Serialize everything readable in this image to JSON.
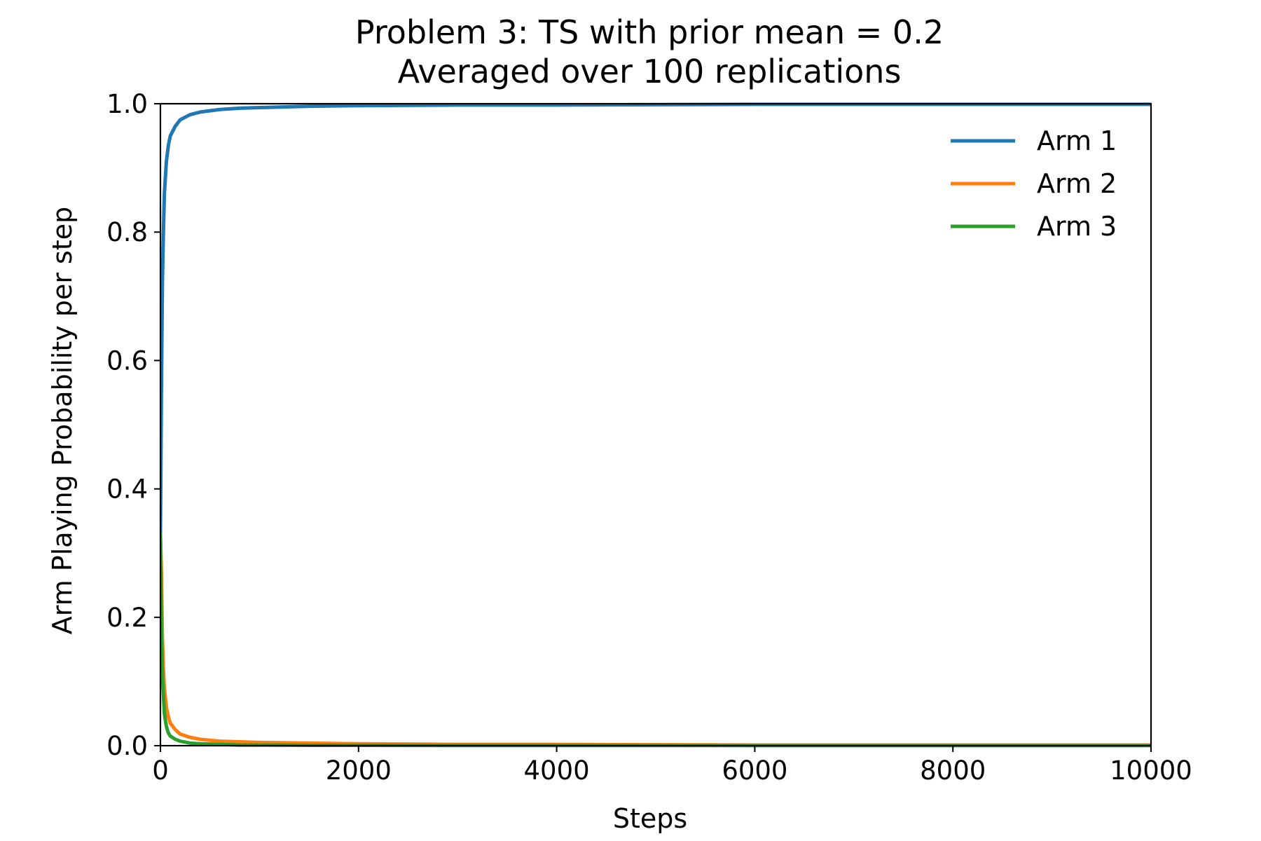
{
  "chart_data": {
    "type": "line",
    "title": "Problem 3: TS with prior mean = 0.2",
    "subtitle": "Averaged over 100 replications",
    "xlabel": "Steps",
    "ylabel": "Arm Playing Probability per step",
    "xlim": [
      0,
      10000
    ],
    "ylim": [
      0.0,
      1.0
    ],
    "x_ticks": [
      "0",
      "2000",
      "4000",
      "6000",
      "8000",
      "10000"
    ],
    "y_ticks": [
      "0.0",
      "0.2",
      "0.4",
      "0.6",
      "0.8",
      "1.0"
    ],
    "grid": false,
    "legend_position": "top-right",
    "series": [
      {
        "name": "Arm 1",
        "color": "#1f77b4",
        "x": [
          0,
          10,
          20,
          30,
          40,
          60,
          80,
          100,
          150,
          200,
          300,
          400,
          600,
          800,
          1000,
          1500,
          2000,
          3000,
          4000,
          6000,
          8000,
          10000
        ],
        "y": [
          0.33,
          0.55,
          0.72,
          0.8,
          0.86,
          0.91,
          0.935,
          0.95,
          0.965,
          0.975,
          0.983,
          0.987,
          0.991,
          0.993,
          0.994,
          0.996,
          0.997,
          0.998,
          0.998,
          0.999,
          0.999,
          0.999
        ]
      },
      {
        "name": "Arm 2",
        "color": "#ff7f0e",
        "x": [
          0,
          10,
          20,
          30,
          40,
          60,
          80,
          100,
          150,
          200,
          300,
          400,
          600,
          800,
          1000,
          1500,
          2000,
          3000,
          4000,
          6000,
          8000,
          10000
        ],
        "y": [
          0.33,
          0.27,
          0.17,
          0.12,
          0.09,
          0.06,
          0.045,
          0.035,
          0.025,
          0.018,
          0.013,
          0.01,
          0.007,
          0.006,
          0.005,
          0.004,
          0.003,
          0.002,
          0.002,
          0.001,
          0.001,
          0.001
        ]
      },
      {
        "name": "Arm 3",
        "color": "#2ca02c",
        "x": [
          0,
          10,
          20,
          30,
          40,
          60,
          80,
          100,
          150,
          200,
          300,
          400,
          600,
          800,
          1000,
          1500,
          2000,
          3000,
          4000,
          6000,
          8000,
          10000
        ],
        "y": [
          0.33,
          0.18,
          0.11,
          0.08,
          0.05,
          0.03,
          0.02,
          0.015,
          0.01,
          0.007,
          0.004,
          0.003,
          0.002,
          0.001,
          0.001,
          0.0005,
          0.0005,
          0.0003,
          0.0003,
          0.0002,
          0.0001,
          0.0001
        ]
      }
    ]
  }
}
